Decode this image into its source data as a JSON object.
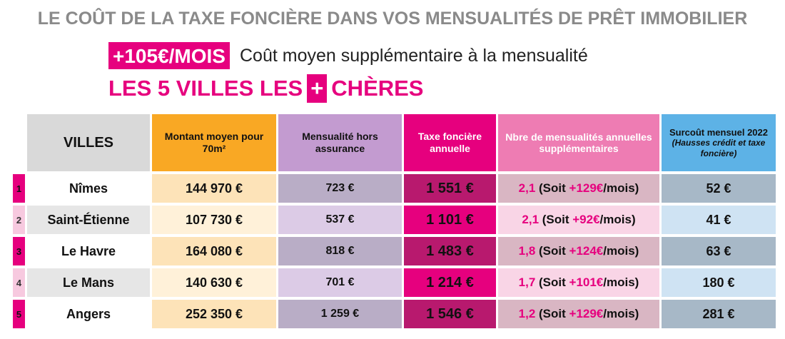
{
  "header": {
    "title": "LE COÛT DE LA TAXE FONCIÈRE DANS VOS MENSUALITÉS DE PRÊT IMMOBILIER",
    "badge": "+105€/MOIS",
    "badge_desc": "Coût moyen supplémentaire à la mensualité",
    "subtitle_left": "LES 5 VILLES LES",
    "subtitle_plus": "+",
    "subtitle_right": "CHÈRES"
  },
  "colors": {
    "magenta": "#e6007e",
    "gray_title": "#8a8a8a",
    "orange": "#f9a824",
    "purple": "#c39bd0",
    "pink": "#ee7cb3",
    "blue": "#5db2e6"
  },
  "table": {
    "headers": {
      "ville": "VILLES",
      "montant": "Montant moyen pour 70m²",
      "mens": "Mensualité hors assurance",
      "taxe": "Taxe foncière annuelle",
      "nbre": "Nbre de mensualités annuelles supplémentaires",
      "surcout": "Surcoût mensuel 2022",
      "surcout_note": "(Hausses crédit et taxe foncière)"
    },
    "rows": [
      {
        "rank": "1",
        "ville": "Nîmes",
        "montant": "144 970 €",
        "mens": "723 €",
        "taxe": "1 551 €",
        "nbre": "2,1",
        "soit_pre": " (Soit ",
        "soit_val": "+129€",
        "soit_post": "/mois)",
        "surcout": "52 €"
      },
      {
        "rank": "2",
        "ville": "Saint-Étienne",
        "montant": "107 730 €",
        "mens": "537 €",
        "taxe": "1 101 €",
        "nbre": "2,1",
        "soit_pre": " (Soit ",
        "soit_val": "+92€",
        "soit_post": "/mois)",
        "surcout": "41 €"
      },
      {
        "rank": "3",
        "ville": "Le Havre",
        "montant": "164 080 €",
        "mens": "818 €",
        "taxe": "1 483 €",
        "nbre": "1,8",
        "soit_pre": " (Soit ",
        "soit_val": "+124€",
        "soit_post": "/mois)",
        "surcout": "63 €"
      },
      {
        "rank": "4",
        "ville": "Le Mans",
        "montant": "140 630 €",
        "mens": "701 €",
        "taxe": "1 214 €",
        "nbre": "1,7",
        "soit_pre": " (Soit ",
        "soit_val": "+101€",
        "soit_post": "/mois)",
        "surcout": "180 €"
      },
      {
        "rank": "5",
        "ville": "Angers",
        "montant": "252 350 €",
        "mens": "1 259 €",
        "taxe": "1 546 €",
        "nbre": "1,2",
        "soit_pre": " (Soit ",
        "soit_val": "+129€",
        "soit_post": "/mois)",
        "surcout": "281 €"
      }
    ]
  }
}
